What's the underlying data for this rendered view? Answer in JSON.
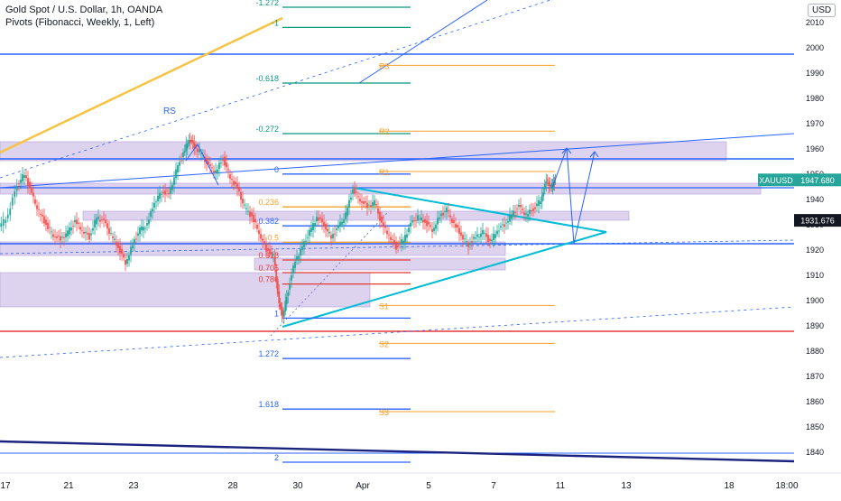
{
  "header": {
    "title": "Gold Spot / U.S. Dollar, 1h, OANDA",
    "indicator": "Pivots (Fibonacci, Weekly, 1, Left)",
    "currency": "USD"
  },
  "colors": {
    "candle_up": "#26a69a",
    "candle_down": "#ef5350",
    "price_badge": "#26a69a",
    "last_close_badge": "#131722",
    "zone_fill": "#d1c4e9",
    "blue_line": "#2962ff",
    "triangle": "#00bcd4",
    "yellow_line": "#f6c343",
    "red_line": "#e53935",
    "navy_line": "#1a237e"
  },
  "chart_data": {
    "type": "candlestick",
    "symbol": "XAUUSD",
    "current_price": "1947.680",
    "marked_price": "1931.676",
    "y_ticks": [
      1840,
      1850,
      1860,
      1870,
      1880,
      1890,
      1900,
      1910,
      1920,
      1930,
      1940,
      1950,
      1960,
      1970,
      1980,
      1990,
      2000,
      2010
    ],
    "y_range": [
      1836,
      2016
    ],
    "x_ticks": [
      "17",
      "21",
      "23",
      "28",
      "30",
      "Apr",
      "5",
      "7",
      "11",
      "13",
      "18",
      "18:00"
    ],
    "series_points": [
      [
        0,
        1929
      ],
      [
        10,
        1934
      ],
      [
        20,
        1946
      ],
      [
        28,
        1950
      ],
      [
        36,
        1942
      ],
      [
        44,
        1935
      ],
      [
        52,
        1930
      ],
      [
        60,
        1926
      ],
      [
        68,
        1924
      ],
      [
        76,
        1927
      ],
      [
        84,
        1931
      ],
      [
        92,
        1928
      ],
      [
        100,
        1925
      ],
      [
        108,
        1933
      ],
      [
        116,
        1931
      ],
      [
        124,
        1926
      ],
      [
        132,
        1921
      ],
      [
        140,
        1915
      ],
      [
        148,
        1922
      ],
      [
        156,
        1928
      ],
      [
        164,
        1930
      ],
      [
        172,
        1939
      ],
      [
        180,
        1943
      ],
      [
        188,
        1942
      ],
      [
        196,
        1951
      ],
      [
        204,
        1958
      ],
      [
        210,
        1964
      ],
      [
        216,
        1961
      ],
      [
        224,
        1958
      ],
      [
        232,
        1953
      ],
      [
        240,
        1951
      ],
      [
        248,
        1956
      ],
      [
        256,
        1949
      ],
      [
        264,
        1944
      ],
      [
        272,
        1937
      ],
      [
        280,
        1933
      ],
      [
        288,
        1927
      ],
      [
        296,
        1920
      ],
      [
        304,
        1918
      ],
      [
        310,
        1898
      ],
      [
        314,
        1894
      ],
      [
        320,
        1904
      ],
      [
        328,
        1916
      ],
      [
        336,
        1921
      ],
      [
        344,
        1927
      ],
      [
        352,
        1933
      ],
      [
        360,
        1930
      ],
      [
        368,
        1925
      ],
      [
        376,
        1929
      ],
      [
        384,
        1934
      ],
      [
        392,
        1944
      ],
      [
        400,
        1940
      ],
      [
        408,
        1937
      ],
      [
        416,
        1939
      ],
      [
        424,
        1930
      ],
      [
        432,
        1926
      ],
      [
        440,
        1921
      ],
      [
        448,
        1924
      ],
      [
        456,
        1930
      ],
      [
        464,
        1933
      ],
      [
        472,
        1931
      ],
      [
        480,
        1928
      ],
      [
        488,
        1933
      ],
      [
        496,
        1936
      ],
      [
        504,
        1930
      ],
      [
        512,
        1926
      ],
      [
        520,
        1922
      ],
      [
        528,
        1925
      ],
      [
        536,
        1927
      ],
      [
        544,
        1923
      ],
      [
        552,
        1928
      ],
      [
        560,
        1930
      ],
      [
        568,
        1934
      ],
      [
        576,
        1937
      ],
      [
        584,
        1934
      ],
      [
        592,
        1936
      ],
      [
        600,
        1940
      ],
      [
        606,
        1947
      ],
      [
        612,
        1945
      ],
      [
        616,
        1948
      ]
    ],
    "fib_levels": [
      {
        "label": "-1.272",
        "price": 2016,
        "color": "#089981"
      },
      {
        "label": "-1",
        "price": 2008,
        "color": "#089981"
      },
      {
        "label": "-0.618",
        "price": 1986,
        "color": "#089981"
      },
      {
        "label": "-0.272",
        "price": 1966,
        "color": "#089981"
      },
      {
        "label": "0",
        "price": 1950,
        "color": "#2962ff"
      },
      {
        "label": "0.236",
        "price": 1937,
        "color": "#f7a12c"
      },
      {
        "label": "0.382",
        "price": 1929.5,
        "color": "#2962ff"
      },
      {
        "label": "0.5",
        "price": 1923,
        "color": "#f7a12c"
      },
      {
        "label": "0.618",
        "price": 1916,
        "color": "#e53935"
      },
      {
        "label": "0.705",
        "price": 1911,
        "color": "#e53935"
      },
      {
        "label": "0.786",
        "price": 1906.5,
        "color": "#e53935"
      },
      {
        "label": "1",
        "price": 1893,
        "color": "#2962ff"
      },
      {
        "label": "1.272",
        "price": 1877,
        "color": "#2962ff"
      },
      {
        "label": "1.618",
        "price": 1857,
        "color": "#2962ff"
      },
      {
        "label": "2",
        "price": 1836,
        "color": "#2962ff"
      }
    ],
    "pivots": [
      {
        "label": "R3",
        "price": 1993
      },
      {
        "label": "R2",
        "price": 1967
      },
      {
        "label": "R1",
        "price": 1951
      },
      {
        "label": "S1",
        "price": 1898
      },
      {
        "label": "S2",
        "price": 1883
      },
      {
        "label": "S3",
        "price": 1856
      }
    ],
    "annotations": [
      "RS"
    ]
  }
}
